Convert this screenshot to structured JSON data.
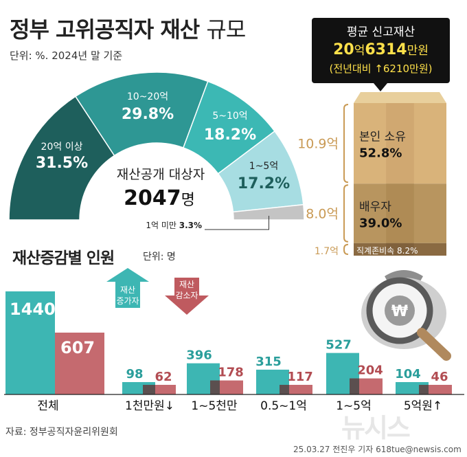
{
  "title_bold": "정부 고위공직자 재산",
  "title_light": "규모",
  "unit_label": "단위: %. 2024년 말 기준",
  "average_box": {
    "label": "평균 신고재산",
    "value_a": "20",
    "unit_a": "억",
    "value_b": "6314",
    "unit_b": "만원",
    "change": "(전년대비 ↑6210만원)"
  },
  "gauge_center": {
    "label": "재산공개 대상자",
    "value": "2047",
    "unit": "명"
  },
  "chart_data": [
    {
      "type": "pie",
      "style": "half-donut",
      "slices": [
        {
          "label": "20억 이상",
          "value": 31.5,
          "display": "31.5%",
          "color": "#1e5f5c"
        },
        {
          "label": "10~20억",
          "value": 29.8,
          "display": "29.8%",
          "color": "#2e9794"
        },
        {
          "label": "5~10억",
          "value": 18.2,
          "display": "18.2%",
          "color": "#3cb8b4"
        },
        {
          "label": "1~5억",
          "value": 17.2,
          "display": "17.2%",
          "color": "#a7dde2"
        },
        {
          "label": "1억 미만",
          "value": 3.3,
          "display": "3.3%",
          "color": "#c4c4c4"
        }
      ]
    },
    {
      "type": "bar",
      "style": "stacked-box",
      "segments": [
        {
          "label": "본인 소유",
          "value": 52.8,
          "display": "52.8%",
          "amount": "10.9억"
        },
        {
          "label": "배우자",
          "value": 39.0,
          "display": "39.0%",
          "amount": "8.0억"
        },
        {
          "label": "직계존비속",
          "value": 8.2,
          "display": "8.2%",
          "amount": "1.7억"
        }
      ]
    },
    {
      "type": "bar",
      "title": "재산증감별 인원",
      "unit": "단위: 명",
      "categories": [
        "전체",
        "1천만원↓",
        "1~5천만",
        "0.5~1억",
        "1~5억",
        "5억원↑"
      ],
      "series": [
        {
          "name": "재산 증가자",
          "values": [
            1440,
            98,
            396,
            315,
            527,
            104
          ],
          "color": "#3db6b3"
        },
        {
          "name": "재산 감소자",
          "values": [
            607,
            62,
            178,
            117,
            204,
            46
          ],
          "color": "#bf5a5f"
        }
      ],
      "legend_placement": "top-center"
    }
  ],
  "source": "자료: 정부공직자윤리위원회",
  "credit": "25.03.27 전진우 기자 618tue@newsis.com",
  "watermark": "뉴시스"
}
